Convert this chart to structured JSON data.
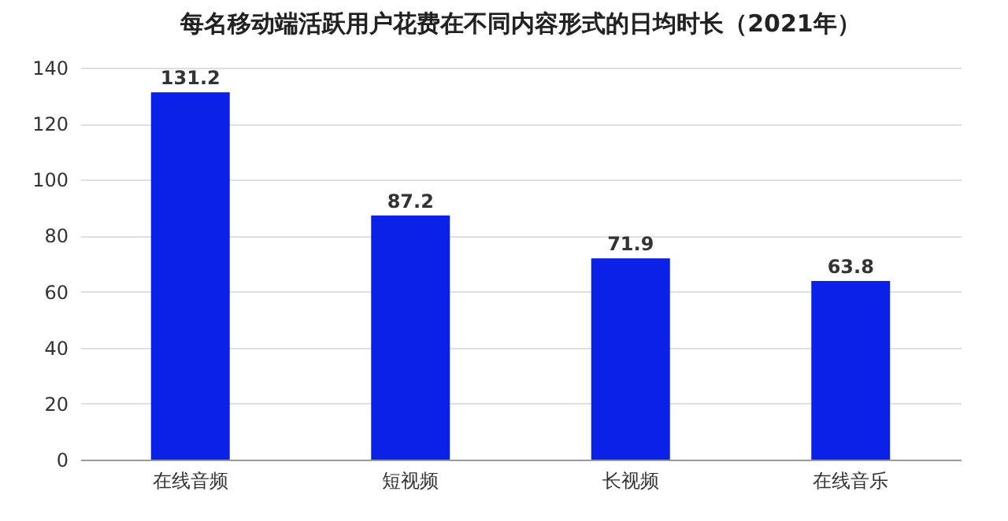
{
  "chart_data": {
    "type": "bar",
    "title": "每名移动端活跃用户花费在不同内容形式的日均时长（2021年）",
    "categories": [
      "在线音频",
      "短视频",
      "长视频",
      "在线音乐"
    ],
    "values": [
      131.2,
      87.2,
      71.9,
      63.8
    ],
    "color": "#0a22e8",
    "ylim": [
      0,
      140
    ],
    "yticks": [
      0,
      20,
      40,
      60,
      80,
      100,
      120,
      140
    ],
    "grid": "y",
    "data_labels": true
  }
}
